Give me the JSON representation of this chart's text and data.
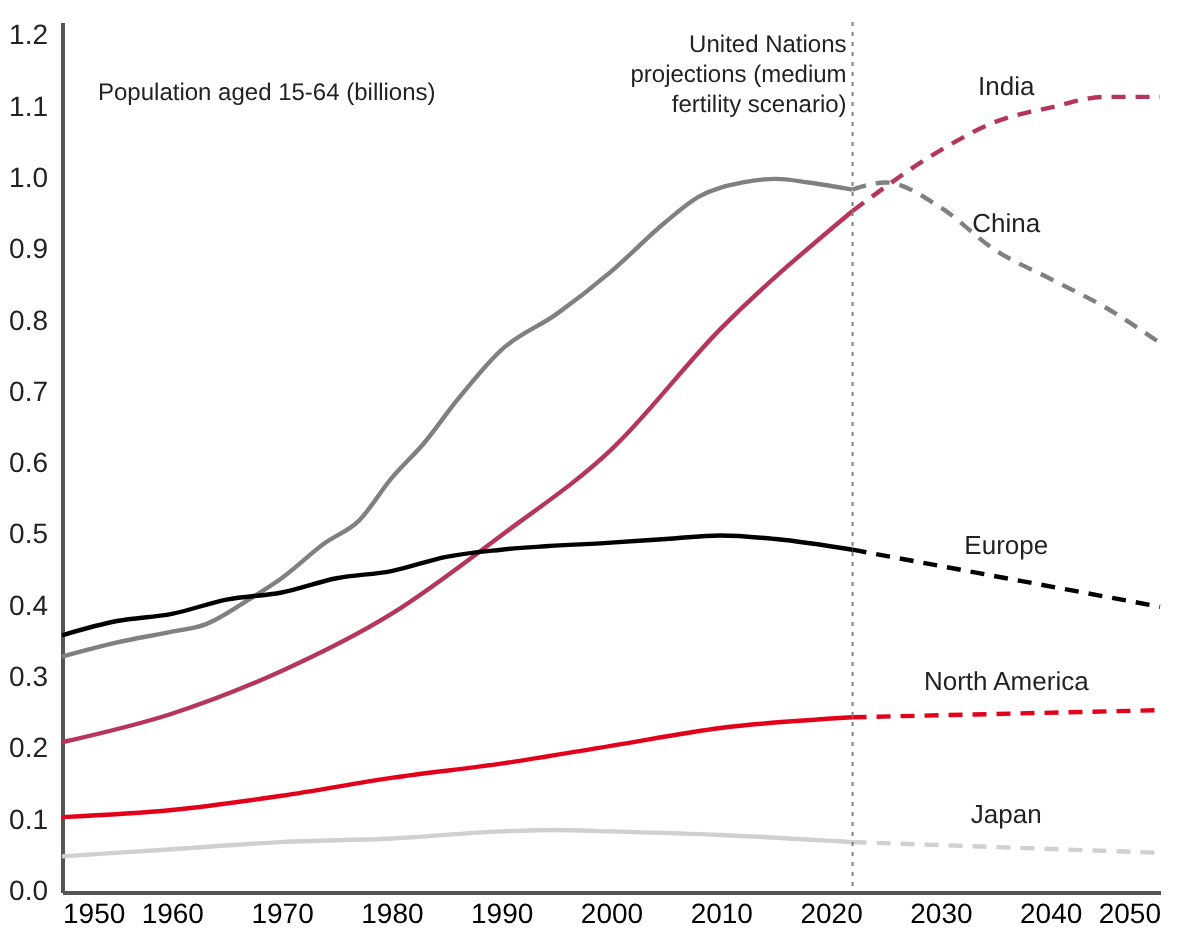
{
  "chart_data": {
    "type": "line",
    "annotations": [
      "Population aged 15-64 (billions)"
    ],
    "xlim": [
      1950,
      2050
    ],
    "xticks": [
      1950,
      1960,
      1970,
      1980,
      1990,
      2000,
      2010,
      2020,
      2030,
      2040,
      2050
    ],
    "ylim": [
      0,
      1.22
    ],
    "yticks": [
      {
        "value": 0,
        "label": "0.0"
      },
      0.1,
      0.2,
      0.3,
      0.4,
      0.5,
      0.6,
      0.7,
      0.8,
      0.9,
      {
        "value": 1,
        "label": "1.0"
      },
      1.1,
      1.2
    ],
    "grid": false,
    "ref_lines": [
      {
        "axis": "x",
        "value": 2022,
        "label": "United Nations projections (medium fertility scenario)",
        "color": "#808080",
        "line_style": "dotted"
      }
    ],
    "series": [
      {
        "color": "#808080",
        "line_style": "solid",
        "x": [
          1950,
          1955,
          1960,
          1963,
          1967,
          1970,
          1974,
          1977,
          1980,
          1983,
          1986,
          1990,
          1995,
          2000,
          2005,
          2008,
          2012,
          2015,
          2018,
          2022
        ],
        "values": [
          0.33,
          0.35,
          0.365,
          0.375,
          0.41,
          0.44,
          0.49,
          0.52,
          0.58,
          0.63,
          0.69,
          0.76,
          0.81,
          0.87,
          0.94,
          0.975,
          0.995,
          1.0,
          0.995,
          0.985
        ]
      },
      {
        "name": "China",
        "color": "#808080",
        "line_style": "dashed",
        "x": [
          2022,
          2025,
          2030,
          2035,
          2040,
          2045,
          2050
        ],
        "values": [
          0.985,
          0.995,
          0.96,
          0.9,
          0.86,
          0.82,
          0.77
        ]
      },
      {
        "color": "#b5365a",
        "line_style": "solid",
        "x": [
          1950,
          1960,
          1970,
          1980,
          1990,
          2000,
          2010,
          2022
        ],
        "values": [
          0.21,
          0.25,
          0.31,
          0.39,
          0.5,
          0.62,
          0.79,
          0.955
        ]
      },
      {
        "name": "India",
        "color": "#b5365a",
        "line_style": "dashed",
        "x": [
          2022,
          2030,
          2035,
          2040,
          2045,
          2050
        ],
        "values": [
          0.955,
          1.04,
          1.08,
          1.1,
          1.115,
          1.115
        ]
      },
      {
        "color": "#000000",
        "line_style": "solid",
        "x": [
          1950,
          1955,
          1960,
          1965,
          1970,
          1975,
          1980,
          1985,
          1990,
          2000,
          2005,
          2010,
          2015,
          2022
        ],
        "values": [
          0.36,
          0.38,
          0.39,
          0.41,
          0.42,
          0.44,
          0.45,
          0.47,
          0.48,
          0.49,
          0.495,
          0.5,
          0.495,
          0.48
        ]
      },
      {
        "name": "Europe",
        "color": "#000000",
        "line_style": "dashed",
        "x": [
          2022,
          2036,
          2050
        ],
        "values": [
          0.48,
          0.44,
          0.4
        ]
      },
      {
        "color": "#e3001b",
        "line_style": "solid",
        "x": [
          1950,
          1960,
          1970,
          1980,
          1990,
          2000,
          2010,
          2022
        ],
        "values": [
          0.105,
          0.115,
          0.135,
          0.16,
          0.18,
          0.205,
          0.23,
          0.245
        ]
      },
      {
        "name": "North America",
        "color": "#e3001b",
        "line_style": "dashed",
        "x": [
          2022,
          2050
        ],
        "values": [
          0.245,
          0.255
        ]
      },
      {
        "color": "#d0d0d0",
        "line_style": "solid",
        "x": [
          1950,
          1960,
          1970,
          1980,
          1990,
          1995,
          2000,
          2010,
          2022
        ],
        "values": [
          0.05,
          0.06,
          0.07,
          0.075,
          0.085,
          0.087,
          0.085,
          0.08,
          0.07
        ]
      },
      {
        "name": "Japan",
        "color": "#d0d0d0",
        "line_style": "dashed",
        "x": [
          2022,
          2050
        ],
        "values": [
          0.07,
          0.055
        ]
      }
    ]
  }
}
